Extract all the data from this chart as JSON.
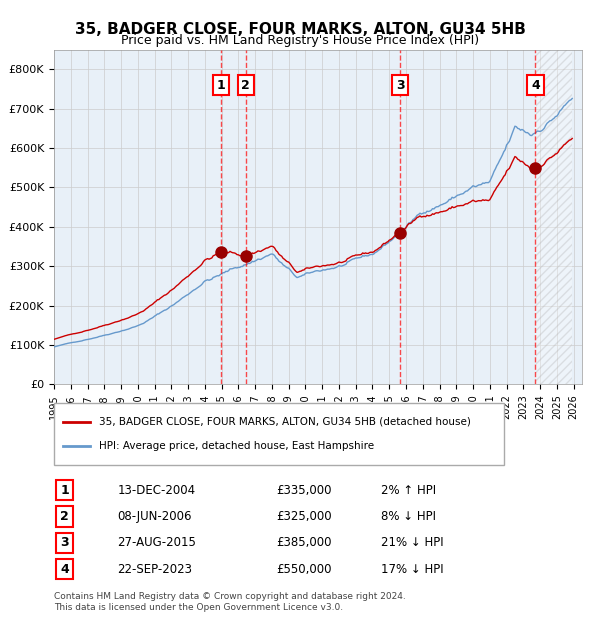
{
  "title1": "35, BADGER CLOSE, FOUR MARKS, ALTON, GU34 5HB",
  "title2": "Price paid vs. HM Land Registry's House Price Index (HPI)",
  "ylabel": "",
  "xlabel": "",
  "ylim": [
    0,
    850000
  ],
  "yticks": [
    0,
    100000,
    200000,
    300000,
    400000,
    500000,
    600000,
    700000,
    800000
  ],
  "ytick_labels": [
    "£0",
    "£100K",
    "£200K",
    "£300K",
    "£400K",
    "£500K",
    "£600K",
    "£700K",
    "£800K"
  ],
  "x_start_year": 1995,
  "x_end_year": 2026,
  "hpi_color": "#a8c8e8",
  "price_color": "#cc0000",
  "bg_color": "#ddeeff",
  "grid_color": "#cccccc",
  "sale_dates": [
    "2004-12-13",
    "2006-06-08",
    "2015-08-27",
    "2023-09-22"
  ],
  "sale_prices": [
    335000,
    325000,
    385000,
    550000
  ],
  "sale_labels": [
    "1",
    "2",
    "3",
    "4"
  ],
  "legend_entries": [
    "35, BADGER CLOSE, FOUR MARKS, ALTON, GU34 5HB (detached house)",
    "HPI: Average price, detached house, East Hampshire"
  ],
  "table_entries": [
    {
      "label": "1",
      "date": "13-DEC-2004",
      "price": "£335,000",
      "change": "2% ↑ HPI"
    },
    {
      "label": "2",
      "date": "08-JUN-2006",
      "price": "£325,000",
      "change": "8% ↓ HPI"
    },
    {
      "label": "3",
      "date": "27-AUG-2015",
      "price": "£385,000",
      "change": "21% ↓ HPI"
    },
    {
      "label": "4",
      "date": "22-SEP-2023",
      "price": "£550,000",
      "change": "17% ↓ HPI"
    }
  ],
  "footnote": "Contains HM Land Registry data © Crown copyright and database right 2024.\nThis data is licensed under the Open Government Licence v3.0.",
  "hatch_color": "#aaaaaa",
  "future_shade_alpha": 0.15
}
